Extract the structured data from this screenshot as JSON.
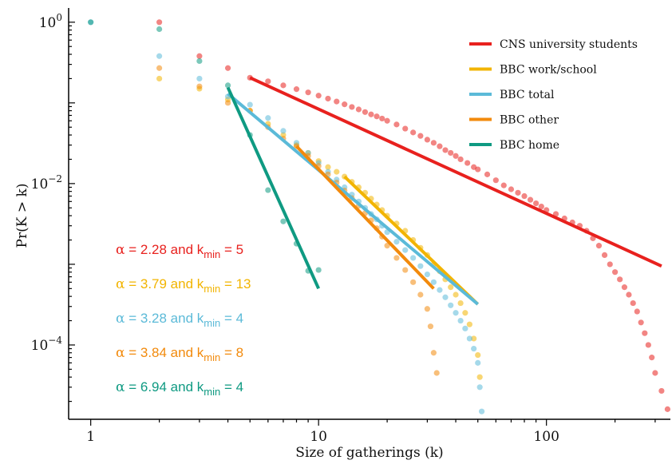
{
  "chart_data": {
    "type": "scatter",
    "title": "",
    "xlabel": "Size of gatherings (k)",
    "ylabel": "Pr(K > k)",
    "xscale": "log",
    "yscale": "log",
    "xlim": [
      0.8,
      350
    ],
    "ylim": [
      1.2e-05,
      1.5
    ],
    "x_ticks": [
      {
        "value": 1,
        "label": "1"
      },
      {
        "value": 10,
        "label": "10"
      },
      {
        "value": 100,
        "label": "100"
      }
    ],
    "y_ticks": [
      {
        "value": 1,
        "base": "10",
        "exp": "0"
      },
      {
        "value": 0.01,
        "base": "10",
        "exp": "−2"
      },
      {
        "value": 0.0001,
        "base": "10",
        "exp": "−4"
      }
    ],
    "grid": false,
    "legend_position": "top-right",
    "series": [
      {
        "name": "CNS university students",
        "color": "#e8211e",
        "points": [
          [
            2,
            1.0
          ],
          [
            3,
            0.38
          ],
          [
            4,
            0.27
          ],
          [
            5,
            0.205
          ],
          [
            6,
            0.185
          ],
          [
            7,
            0.165
          ],
          [
            8,
            0.148
          ],
          [
            9,
            0.135
          ],
          [
            10,
            0.123
          ],
          [
            11,
            0.113
          ],
          [
            12,
            0.104
          ],
          [
            13,
            0.096
          ],
          [
            14,
            0.089
          ],
          [
            15,
            0.083
          ],
          [
            16,
            0.077
          ],
          [
            17,
            0.072
          ],
          [
            18,
            0.068
          ],
          [
            19,
            0.064
          ],
          [
            20,
            0.06
          ],
          [
            22,
            0.054
          ],
          [
            24,
            0.048
          ],
          [
            26,
            0.043
          ],
          [
            28,
            0.039
          ],
          [
            30,
            0.035
          ],
          [
            32,
            0.032
          ],
          [
            34,
            0.029
          ],
          [
            36,
            0.026
          ],
          [
            38,
            0.024
          ],
          [
            40,
            0.022
          ],
          [
            42,
            0.02
          ],
          [
            45,
            0.018
          ],
          [
            48,
            0.016
          ],
          [
            50,
            0.015
          ],
          [
            55,
            0.013
          ],
          [
            60,
            0.011
          ],
          [
            65,
            0.0095
          ],
          [
            70,
            0.0085
          ],
          [
            75,
            0.0077
          ],
          [
            80,
            0.007
          ],
          [
            85,
            0.0063
          ],
          [
            90,
            0.0057
          ],
          [
            95,
            0.0052
          ],
          [
            100,
            0.0047
          ],
          [
            110,
            0.0042
          ],
          [
            120,
            0.0037
          ],
          [
            130,
            0.0033
          ],
          [
            140,
            0.003
          ],
          [
            150,
            0.0026
          ],
          [
            160,
            0.0021
          ],
          [
            170,
            0.0017
          ],
          [
            180,
            0.0013
          ],
          [
            190,
            0.001
          ],
          [
            200,
            0.0008
          ],
          [
            210,
            0.00065
          ],
          [
            220,
            0.00052
          ],
          [
            230,
            0.00042
          ],
          [
            240,
            0.00033
          ],
          [
            250,
            0.00026
          ],
          [
            260,
            0.00019
          ],
          [
            270,
            0.00014
          ],
          [
            280,
            0.0001
          ],
          [
            290,
            7e-05
          ],
          [
            300,
            4.5e-05
          ],
          [
            320,
            2.7e-05
          ],
          [
            340,
            1.6e-05
          ]
        ],
        "fit": {
          "alpha": 2.28,
          "kmin": 5,
          "line": [
            [
              5,
              0.205
            ],
            [
              320,
              0.00095
            ]
          ]
        }
      },
      {
        "name": "BBC work/school",
        "color": "#f2b400",
        "points": [
          [
            2,
            0.2
          ],
          [
            3,
            0.15
          ],
          [
            4,
            0.11
          ],
          [
            5,
            0.08
          ],
          [
            6,
            0.055
          ],
          [
            7,
            0.04
          ],
          [
            8,
            0.03
          ],
          [
            9,
            0.024
          ],
          [
            10,
            0.019
          ],
          [
            11,
            0.016
          ],
          [
            12,
            0.014
          ],
          [
            13,
            0.0122
          ],
          [
            14,
            0.0105
          ],
          [
            15,
            0.009
          ],
          [
            16,
            0.0077
          ],
          [
            17,
            0.0065
          ],
          [
            18,
            0.0055
          ],
          [
            19,
            0.0047
          ],
          [
            20,
            0.004
          ],
          [
            22,
            0.0032
          ],
          [
            24,
            0.0026
          ],
          [
            26,
            0.002
          ],
          [
            28,
            0.0016
          ],
          [
            30,
            0.0013
          ],
          [
            32,
            0.001
          ],
          [
            34,
            0.00082
          ],
          [
            36,
            0.00065
          ],
          [
            38,
            0.00052
          ],
          [
            40,
            0.00042
          ],
          [
            42,
            0.00033
          ],
          [
            44,
            0.00025
          ],
          [
            46,
            0.00018
          ],
          [
            48,
            0.00012
          ],
          [
            50,
            7.5e-05
          ],
          [
            51,
            4e-05
          ]
        ],
        "fit": {
          "alpha": 3.79,
          "kmin": 13,
          "line": [
            [
              13,
              0.0122
            ],
            [
              50,
              0.00032
            ]
          ]
        }
      },
      {
        "name": "BBC total",
        "color": "#5bbad8",
        "points": [
          [
            1,
            1.0
          ],
          [
            2,
            0.38
          ],
          [
            3,
            0.2
          ],
          [
            4,
            0.12
          ],
          [
            5,
            0.095
          ],
          [
            6,
            0.065
          ],
          [
            7,
            0.045
          ],
          [
            8,
            0.032
          ],
          [
            9,
            0.024
          ],
          [
            10,
            0.018
          ],
          [
            11,
            0.014
          ],
          [
            12,
            0.0112
          ],
          [
            13,
            0.009
          ],
          [
            14,
            0.0073
          ],
          [
            15,
            0.006
          ],
          [
            16,
            0.005
          ],
          [
            17,
            0.0042
          ],
          [
            18,
            0.0036
          ],
          [
            19,
            0.003
          ],
          [
            20,
            0.0025
          ],
          [
            22,
            0.0019
          ],
          [
            24,
            0.0015
          ],
          [
            26,
            0.0012
          ],
          [
            28,
            0.00095
          ],
          [
            30,
            0.00075
          ],
          [
            32,
            0.0006
          ],
          [
            34,
            0.00048
          ],
          [
            36,
            0.00039
          ],
          [
            38,
            0.00031
          ],
          [
            40,
            0.00025
          ],
          [
            42,
            0.0002
          ],
          [
            44,
            0.00016
          ],
          [
            46,
            0.00012
          ],
          [
            48,
            9e-05
          ],
          [
            50,
            6e-05
          ],
          [
            51,
            3e-05
          ],
          [
            52,
            1.5e-05
          ]
        ],
        "fit": {
          "alpha": 3.28,
          "kmin": 4,
          "line": [
            [
              4,
              0.13
            ],
            [
              50,
              0.00032
            ]
          ]
        }
      },
      {
        "name": "BBC other",
        "color": "#f28a0c",
        "points": [
          [
            2,
            0.27
          ],
          [
            3,
            0.16
          ],
          [
            4,
            0.1
          ],
          [
            5,
            0.08
          ],
          [
            6,
            0.05
          ],
          [
            7,
            0.036
          ],
          [
            8,
            0.029
          ],
          [
            9,
            0.022
          ],
          [
            10,
            0.0165
          ],
          [
            11,
            0.013
          ],
          [
            12,
            0.0103
          ],
          [
            13,
            0.0082
          ],
          [
            14,
            0.0066
          ],
          [
            15,
            0.0053
          ],
          [
            16,
            0.0043
          ],
          [
            17,
            0.0035
          ],
          [
            18,
            0.0028
          ],
          [
            19,
            0.0022
          ],
          [
            20,
            0.0017
          ],
          [
            22,
            0.0012
          ],
          [
            24,
            0.00085
          ],
          [
            26,
            0.0006
          ],
          [
            28,
            0.00042
          ],
          [
            30,
            0.00028
          ],
          [
            31,
            0.00017
          ],
          [
            32,
            8e-05
          ],
          [
            33,
            4.5e-05
          ]
        ],
        "fit": {
          "alpha": 3.84,
          "kmin": 8,
          "line": [
            [
              8,
              0.029
            ],
            [
              32,
              0.0005
            ]
          ]
        }
      },
      {
        "name": "BBC home",
        "color": "#0f9a82",
        "points": [
          [
            1,
            1.0
          ],
          [
            2,
            0.82
          ],
          [
            3,
            0.33
          ],
          [
            4,
            0.165
          ],
          [
            5,
            0.04
          ],
          [
            6,
            0.0083
          ],
          [
            7,
            0.0034
          ],
          [
            8,
            0.0018
          ],
          [
            9,
            0.00083
          ],
          [
            10,
            0.00085
          ]
        ],
        "fit": {
          "alpha": 6.94,
          "kmin": 4,
          "line": [
            [
              4,
              0.155
            ],
            [
              10,
              0.0005
            ]
          ]
        }
      }
    ],
    "annotations": [
      {
        "alpha": "2.28",
        "kmin": "5",
        "color": "#e8211e"
      },
      {
        "alpha": "3.79",
        "kmin": "13",
        "color": "#f2b400"
      },
      {
        "alpha": "3.28",
        "kmin": "4",
        "color": "#5bbad8"
      },
      {
        "alpha": "3.84",
        "kmin": "8",
        "color": "#f28a0c"
      },
      {
        "alpha": "6.94",
        "kmin": "4",
        "color": "#0f9a82"
      }
    ]
  }
}
